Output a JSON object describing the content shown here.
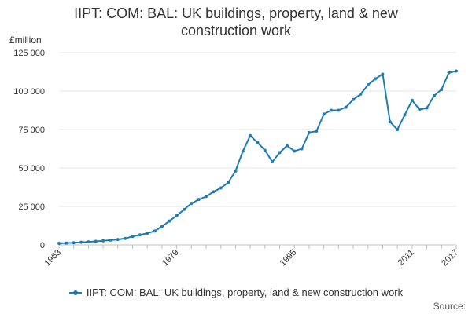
{
  "chart_data": {
    "type": "line",
    "title_line1": "IIPT: COM: BAL: UK buildings, property, land & new",
    "title_line2": "construction work",
    "ylabel": "£million",
    "xlabel": "",
    "xlim": [
      1963,
      2017
    ],
    "ylim": [
      0,
      125000
    ],
    "y_ticks": [
      {
        "value": 0,
        "label": "0"
      },
      {
        "value": 25000,
        "label": "25 000"
      },
      {
        "value": 50000,
        "label": "50 000"
      },
      {
        "value": 75000,
        "label": "75 000"
      },
      {
        "value": 100000,
        "label": "100 000"
      },
      {
        "value": 125000,
        "label": "125 000"
      }
    ],
    "x_ticks": [
      {
        "value": 1963,
        "label": "1963"
      },
      {
        "value": 1979,
        "label": "1979"
      },
      {
        "value": 1995,
        "label": "1995"
      },
      {
        "value": 2011,
        "label": "2011"
      },
      {
        "value": 2017,
        "label": "2017"
      }
    ],
    "grid": "horizontal",
    "legend_position": "bottom",
    "series": [
      {
        "name": "IIPT: COM: BAL: UK buildings, property, land & new construction work",
        "color": "#1f7cb3",
        "x": [
          1963,
          1964,
          1965,
          1966,
          1967,
          1968,
          1969,
          1970,
          1971,
          1972,
          1973,
          1974,
          1975,
          1976,
          1977,
          1978,
          1979,
          1980,
          1981,
          1982,
          1983,
          1984,
          1985,
          1986,
          1987,
          1988,
          1989,
          1990,
          1991,
          1992,
          1993,
          1994,
          1995,
          1996,
          1997,
          1998,
          1999,
          2000,
          2001,
          2002,
          2003,
          2004,
          2005,
          2006,
          2007,
          2008,
          2009,
          2010,
          2011,
          2012,
          2013,
          2014,
          2015,
          2016,
          2017
        ],
        "values": [
          1000,
          1200,
          1400,
          1700,
          2000,
          2300,
          2700,
          3100,
          3500,
          4200,
          5500,
          6500,
          7600,
          9000,
          12000,
          15500,
          19000,
          23000,
          27000,
          29500,
          31500,
          34500,
          37000,
          40500,
          48000,
          61000,
          71000,
          66500,
          61500,
          54000,
          60000,
          64500,
          61000,
          62500,
          73000,
          74000,
          85000,
          87500,
          87500,
          89500,
          94500,
          98000,
          104000,
          108000,
          111000,
          80000,
          75000,
          84500,
          94000,
          88000,
          89000,
          97000,
          101000,
          112000,
          113000
        ]
      }
    ]
  },
  "source_label": "Source:"
}
